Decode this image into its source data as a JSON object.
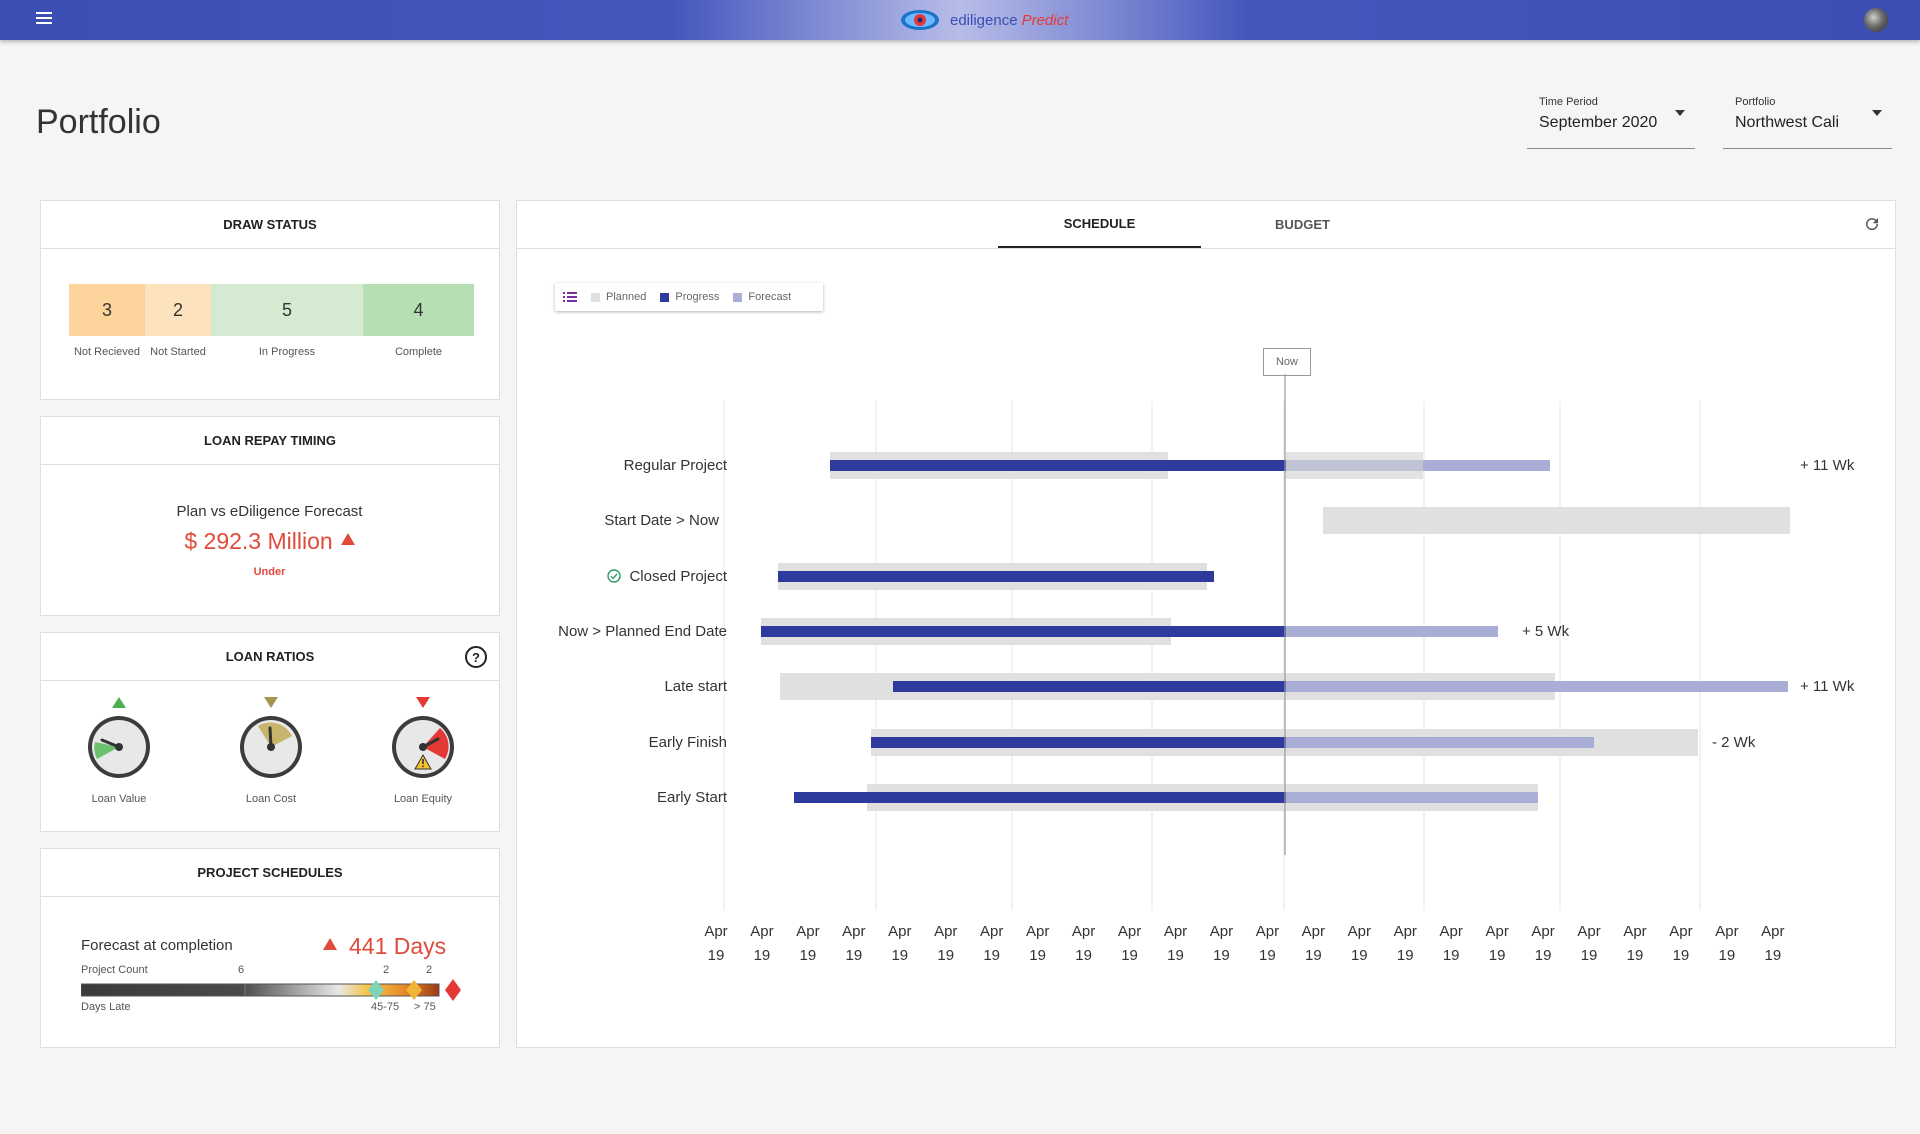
{
  "app": {
    "brand": "ediligence",
    "brand_suffix": "Predict"
  },
  "page": {
    "title": "Portfolio"
  },
  "filters": {
    "time_period": {
      "label": "Time Period",
      "value": "September 2020"
    },
    "portfolio": {
      "label": "Portfolio",
      "value": "Northwest Cali"
    }
  },
  "draw_status": {
    "title": "DRAW STATUS",
    "segments": [
      {
        "label": "Not Recieved",
        "count": "3",
        "color": "#fdd49b"
      },
      {
        "label": "Not Started",
        "count": "2",
        "color": "#fde2be"
      },
      {
        "label": "In Progress",
        "count": "5",
        "color": "#d4ebd2"
      },
      {
        "label": "Complete",
        "count": "4",
        "color": "#b6dfb4"
      }
    ]
  },
  "loan_repay": {
    "title": "LOAN REPAY TIMING",
    "subtitle": "Plan vs eDiligence Forecast",
    "amount": "$ 292.3 Million",
    "status": "Under"
  },
  "loan_ratios": {
    "title": "LOAN RATIOS",
    "help": "?",
    "gauges": [
      {
        "label": "Loan Value",
        "direction": "up",
        "color": "#4caf50"
      },
      {
        "label": "Loan Cost",
        "direction": "down",
        "color": "#a89650"
      },
      {
        "label": "Loan Equity",
        "direction": "down",
        "color": "#e53935"
      }
    ]
  },
  "project_schedules": {
    "title": "PROJECT SCHEDULES",
    "forecast_label": "Forecast at completion",
    "forecast_value": "441 Days",
    "project_count_label": "Project Count",
    "days_late_label": "Days Late",
    "counts": [
      "6",
      "2",
      "2"
    ],
    "ranges": [
      "45-75",
      "> 75"
    ]
  },
  "schedule_panel": {
    "tabs": [
      "SCHEDULE",
      "BUDGET"
    ],
    "active_tab": "SCHEDULE",
    "legend": [
      {
        "name": "Planned",
        "color": "#e0e0e0"
      },
      {
        "name": "Progress",
        "color": "#2e3a9e"
      },
      {
        "name": "Forecast",
        "color": "#a9aed6"
      }
    ],
    "now_label": "Now",
    "rows": [
      {
        "name": "Regular Project",
        "delta": "+ 11 Wk",
        "completed": false
      },
      {
        "name": "Start Date > Now",
        "delta": "",
        "completed": false
      },
      {
        "name": "Closed Project",
        "delta": "",
        "completed": true
      },
      {
        "name": "Now > Planned End Date",
        "delta": "+ 5 Wk",
        "completed": false
      },
      {
        "name": "Late start",
        "delta": "+ 11 Wk",
        "completed": false
      },
      {
        "name": "Early Finish",
        "delta": "- 2 Wk",
        "completed": false
      },
      {
        "name": "Early Start",
        "delta": "",
        "completed": false
      }
    ],
    "x_ticks": [
      "Apr 19",
      "Apr 19",
      "Apr 19",
      "Apr 19",
      "Apr 19",
      "Apr 19",
      "Apr 19",
      "Apr 19",
      "Apr 19",
      "Apr 19",
      "Apr 19",
      "Apr 19",
      "Apr 19",
      "Apr 19",
      "Apr 19",
      "Apr 19",
      "Apr 19",
      "Apr 19",
      "Apr 19",
      "Apr 19",
      "Apr 19",
      "Apr 19",
      "Apr 19",
      "Apr 19"
    ]
  }
}
